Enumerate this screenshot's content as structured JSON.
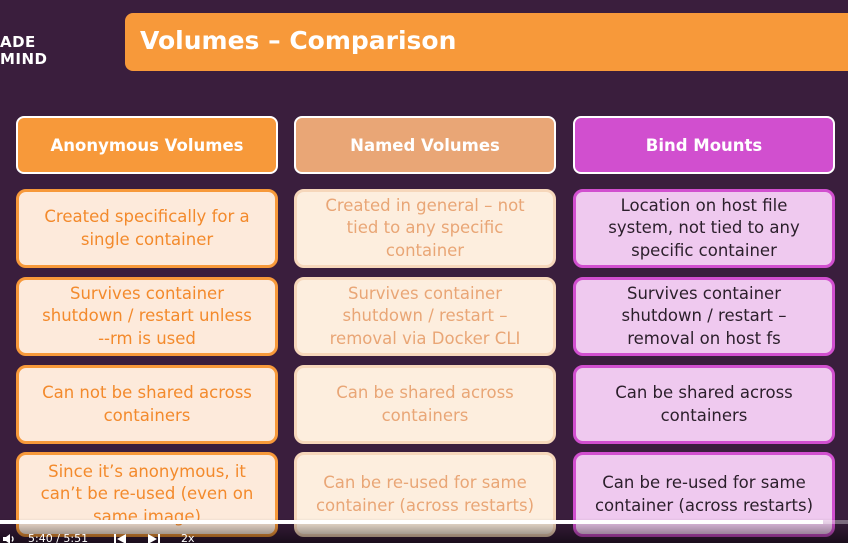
{
  "logo": {
    "line1": "ADE",
    "line2": "MIND"
  },
  "title": "Volumes – Comparison",
  "columns": [
    {
      "label": "Anonymous Volumes"
    },
    {
      "label": "Named Volumes"
    },
    {
      "label": "Bind Mounts"
    }
  ],
  "rows": [
    {
      "anonymous": "Created specifically for a\nsingle container",
      "named": "Created in general – not\ntied to any specific\ncontainer",
      "bind": "Location on host file\nsystem, not tied to any\nspecific container"
    },
    {
      "anonymous": "Survives container\nshutdown / restart unless\n--rm is used",
      "named": "Survives container\nshutdown / restart –\nremoval via Docker CLI",
      "bind": "Survives container\nshutdown / restart –\nremoval on host fs"
    },
    {
      "anonymous": "Can not be shared across\ncontainers",
      "named": "Can be shared across\ncontainers",
      "bind": "Can be shared across\ncontainers"
    },
    {
      "anonymous": "Since it’s anonymous, it\ncan’t be re-used (even on\nsame image)",
      "named": "Can be re-used for same\ncontainer (across restarts)",
      "bind": "Can be re-used for same\ncontainer (across restarts)"
    }
  ],
  "player": {
    "volume_icon": "volume-icon",
    "time": "5:40 / 5:51",
    "prev_icon": "skip-previous-icon",
    "next_icon": "skip-next-icon",
    "speed": "2x",
    "progress": 0.97
  },
  "colors": {
    "background": "#3a1e3d",
    "accent_orange": "#f7993a",
    "named_header": "#e9a676",
    "bind_purple": "#d14fcf"
  }
}
